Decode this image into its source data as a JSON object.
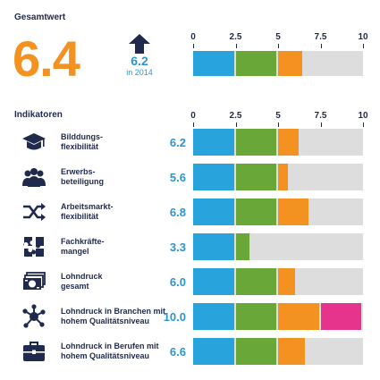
{
  "header": {
    "title": "Gesamtwert"
  },
  "overall": {
    "value": "6.4",
    "previous_value": "6.2",
    "previous_label": "in 2014",
    "arrow_icon": "arrow-up-icon"
  },
  "indicators": {
    "title": "Indikatoren"
  },
  "colors": {
    "seg1": "#29a3dc",
    "seg2": "#6aa739",
    "seg3": "#f39220",
    "seg4": "#e6338c",
    "background": "#dddddd",
    "accent": "#f39220",
    "value_text": "#2b95d1"
  },
  "chart_data": {
    "type": "bar",
    "orientation": "horizontal",
    "xlim": [
      0,
      10
    ],
    "ticks": [
      "0",
      "2.5",
      "5",
      "7.5",
      "10"
    ],
    "segment_boundaries": [
      2.5,
      5,
      7.5,
      10
    ],
    "overall": {
      "label": "Gesamtwert",
      "value": 6.4
    },
    "categories": [
      "Bilddungs-\nflexibilität",
      "Erwerbs-\nbeteiligung",
      "Arbeitsmarkt-\nflexibilität",
      "Fachkräfte-\nmangel",
      "Lohndruck\ngesamt",
      "Lohndruck in Branchen mit\nhohem Qualitätsniveau",
      "Lohndruck in Berufen mit\nhohem Qualitätsniveau"
    ],
    "values": [
      6.2,
      5.6,
      6.8,
      3.3,
      6.0,
      10.0,
      6.6
    ],
    "value_labels": [
      "6.2",
      "5.6",
      "6.8",
      "3.3",
      "6.0",
      "10.0",
      "6.6"
    ],
    "icons": [
      "graduation-cap-icon",
      "people-group-icon",
      "shuffle-arrows-icon",
      "puzzle-pieces-icon",
      "money-bills-icon",
      "network-nodes-icon",
      "briefcase-icon"
    ]
  }
}
